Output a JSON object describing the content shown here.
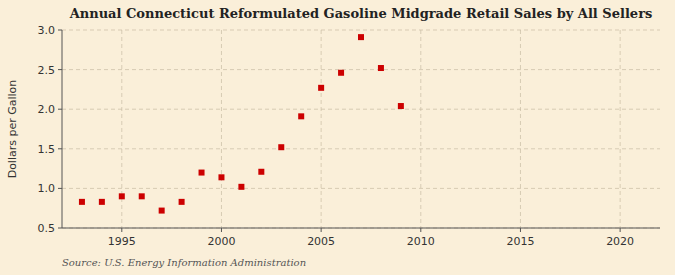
{
  "chart_data": {
    "type": "scatter",
    "title": "Annual Connecticut Reformulated Gasoline Midgrade Retail Sales by All Sellers",
    "y_label": "Dollars per Gallon",
    "annotations": [
      "Source: U.S. Energy Information Administration"
    ],
    "x": [
      1993,
      1994,
      1995,
      1996,
      1997,
      1998,
      1999,
      2000,
      2001,
      2002,
      2003,
      2004,
      2005,
      2006,
      2007,
      2008,
      2009
    ],
    "values": [
      0.83,
      0.83,
      0.9,
      0.9,
      0.72,
      0.83,
      1.2,
      1.14,
      1.02,
      1.21,
      1.52,
      1.91,
      2.27,
      2.46,
      2.91,
      2.52,
      2.04
    ],
    "color": "#cc0000",
    "marker": "square",
    "xlim": [
      1992,
      2022
    ],
    "ylim": [
      0.5,
      3.0
    ],
    "xticks": [
      1995,
      2000,
      2005,
      2010,
      2015,
      2020
    ],
    "yticks": [
      0.5,
      {
        "value": 1.0,
        "label": "1.0"
      },
      1.5,
      {
        "value": 2.0,
        "label": "2.0"
      },
      2.5,
      {
        "value": 3.0,
        "label": "3.0"
      }
    ],
    "grid": true
  }
}
